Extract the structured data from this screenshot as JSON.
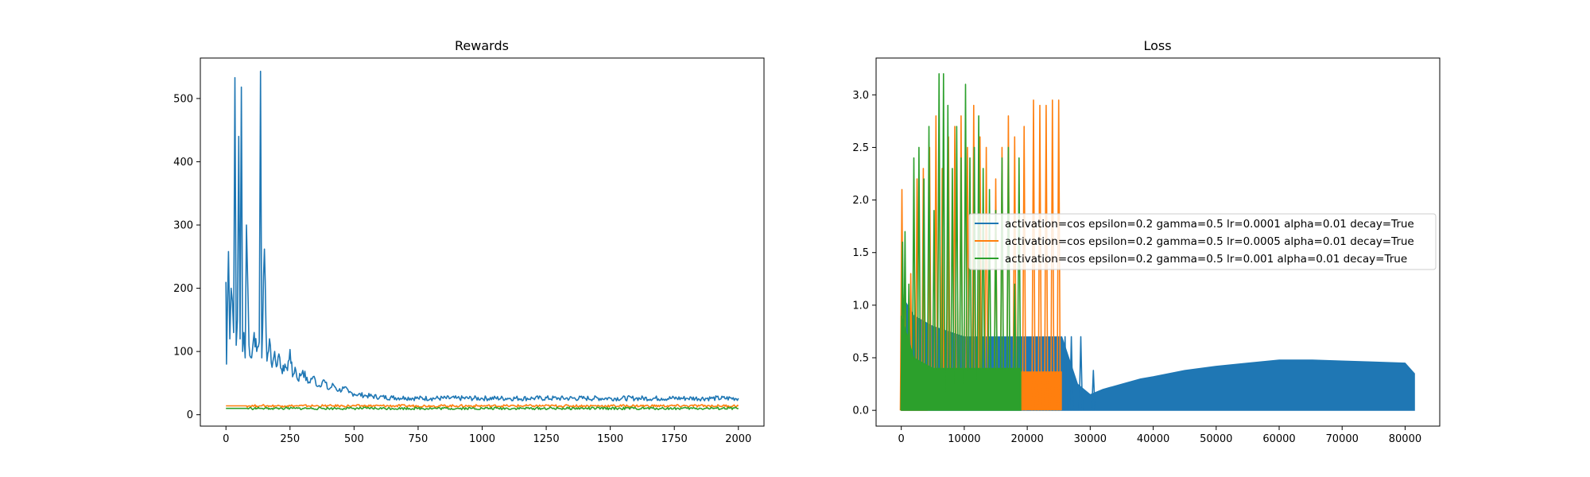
{
  "figure": {
    "background": "#ffffff"
  },
  "chart_data": [
    {
      "type": "line",
      "title": "Rewards",
      "xlabel": "",
      "ylabel": "",
      "xlim": [
        -100,
        2100
      ],
      "ylim": [
        -18,
        564
      ],
      "x_ticks": [
        0,
        250,
        500,
        750,
        1000,
        1250,
        1500,
        1750,
        2000
      ],
      "y_ticks": [
        0,
        100,
        200,
        300,
        400,
        500
      ],
      "grid": false,
      "legend": null,
      "x": [
        0,
        2,
        5,
        10,
        15,
        20,
        25,
        30,
        35,
        40,
        45,
        50,
        55,
        60,
        65,
        70,
        75,
        80,
        90,
        100,
        110,
        120,
        130,
        135,
        140,
        150,
        160,
        170,
        180,
        190,
        200,
        210,
        220,
        230,
        240,
        250,
        260,
        270,
        280,
        300,
        320,
        340,
        360,
        380,
        400,
        420,
        440,
        460,
        480,
        500,
        550,
        600,
        650,
        700,
        750,
        800,
        900,
        1000,
        1100,
        1200,
        1300,
        1400,
        1500,
        1600,
        1700,
        1800,
        1900,
        2000
      ],
      "series": [
        {
          "color": "#1f77b4",
          "values": [
            210,
            80,
            150,
            258,
            120,
            200,
            180,
            130,
            533,
            110,
            150,
            440,
            120,
            518,
            100,
            130,
            90,
            300,
            110,
            90,
            130,
            100,
            115,
            543,
            90,
            262,
            85,
            120,
            75,
            100,
            78,
            90,
            65,
            80,
            70,
            103,
            60,
            75,
            55,
            70,
            50,
            60,
            45,
            55,
            40,
            47,
            38,
            42,
            35,
            33,
            30,
            28,
            27,
            27,
            26,
            26,
            26,
            26,
            26,
            26,
            26,
            26,
            26,
            26,
            26,
            26,
            26,
            26
          ]
        },
        {
          "color": "#ff7f0e",
          "values": [
            14,
            14,
            14,
            14,
            14,
            14,
            14,
            14,
            14,
            14,
            14,
            14,
            14,
            14,
            14,
            14,
            14,
            14,
            14,
            14,
            14,
            14,
            14,
            14,
            14,
            14,
            14,
            14,
            14,
            14,
            14,
            14,
            14,
            14,
            14,
            14,
            14,
            14,
            14,
            14,
            14,
            14,
            14,
            14,
            14,
            14,
            14,
            14,
            14,
            14,
            14,
            14,
            14,
            14,
            14,
            14,
            14,
            14,
            14,
            14,
            14,
            14,
            14,
            14,
            14,
            14,
            14,
            14
          ]
        },
        {
          "color": "#2ca02c",
          "values": [
            10,
            10,
            10,
            10,
            10,
            10,
            10,
            10,
            10,
            10,
            10,
            10,
            10,
            10,
            10,
            10,
            10,
            10,
            10,
            10,
            10,
            10,
            10,
            10,
            10,
            10,
            10,
            10,
            10,
            10,
            10,
            10,
            10,
            10,
            10,
            10,
            10,
            10,
            10,
            10,
            10,
            10,
            10,
            10,
            10,
            10,
            10,
            10,
            10,
            10,
            10,
            10,
            10,
            10,
            10,
            10,
            10,
            10,
            10,
            10,
            10,
            10,
            10,
            10,
            10,
            10,
            10,
            10
          ]
        }
      ]
    },
    {
      "type": "line",
      "title": "Loss",
      "xlabel": "",
      "ylabel": "",
      "xlim": [
        -4000,
        85500
      ],
      "ylim": [
        -0.15,
        3.35
      ],
      "x_ticks": [
        0,
        10000,
        20000,
        30000,
        40000,
        50000,
        60000,
        70000,
        80000
      ],
      "y_ticks": [
        0.0,
        0.5,
        1.0,
        1.5,
        2.0,
        2.5,
        3.0
      ],
      "grid": false,
      "legend": "right",
      "series": [
        {
          "name": "activation=cos epsilon=0.2 gamma=0.5 lr=0.0001 alpha=0.01 decay=True",
          "color": "#1f77b4",
          "x_range": [
            0,
            81500
          ],
          "envelope_x": [
            0,
            2000,
            5000,
            10000,
            15000,
            20000,
            25000,
            25500,
            28000,
            30000,
            32000,
            35000,
            38000,
            40000,
            45000,
            50000,
            55000,
            60000,
            65000,
            70000,
            75000,
            80000,
            81500
          ],
          "envelope_y": [
            1.1,
            0.9,
            0.8,
            0.7,
            0.7,
            0.7,
            0.7,
            0.7,
            0.25,
            0.15,
            0.2,
            0.25,
            0.3,
            0.32,
            0.38,
            0.42,
            0.45,
            0.48,
            0.48,
            0.47,
            0.46,
            0.45,
            0.35
          ],
          "spikes": [
            [
              26000,
              0.7
            ],
            [
              27000,
              0.7
            ],
            [
              28500,
              0.7
            ],
            [
              30500,
              0.38
            ]
          ]
        },
        {
          "name": "activation=cos epsilon=0.2 gamma=0.5 lr=0.0005 alpha=0.01 decay=True",
          "color": "#ff7f0e",
          "x_range": [
            0,
            25500
          ],
          "decay_x": [
            0,
            1000,
            2000,
            3000,
            4000
          ],
          "decay_y": [
            0.22,
            0.18,
            0.1,
            0.04,
            0.0
          ],
          "block": [
            [
              13500,
              19000,
              0.37
            ],
            [
              19000,
              25500,
              0.37
            ]
          ],
          "spikes": [
            [
              100,
              2.1
            ],
            [
              500,
              1.1
            ],
            [
              1500,
              1.3
            ],
            [
              2500,
              2.2
            ],
            [
              3500,
              2.3
            ],
            [
              4500,
              2.5
            ],
            [
              5500,
              2.8
            ],
            [
              6500,
              2.3
            ],
            [
              7500,
              2.6
            ],
            [
              8500,
              2.7
            ],
            [
              9500,
              2.8
            ],
            [
              10500,
              2.5
            ],
            [
              11500,
              2.9
            ],
            [
              12500,
              2.6
            ],
            [
              13500,
              2.5
            ],
            [
              15000,
              2.2
            ],
            [
              16000,
              2.5
            ],
            [
              17000,
              2.8
            ],
            [
              18000,
              2.6
            ],
            [
              19500,
              2.7
            ],
            [
              21000,
              2.95
            ],
            [
              22000,
              2.9
            ],
            [
              23000,
              2.9
            ],
            [
              24000,
              2.95
            ],
            [
              25000,
              2.95
            ]
          ]
        },
        {
          "name": "activation=cos epsilon=0.2 gamma=0.5 lr=0.001 alpha=0.01 decay=True",
          "color": "#2ca02c",
          "x_range": [
            0,
            19000
          ],
          "envelope_x": [
            0,
            2000,
            5000,
            10000,
            15000,
            19000
          ],
          "envelope_y": [
            0.9,
            0.5,
            0.4,
            0.4,
            0.4,
            0.4
          ],
          "spikes": [
            [
              200,
              1.6
            ],
            [
              600,
              1.7
            ],
            [
              1200,
              1.2
            ],
            [
              2000,
              2.4
            ],
            [
              2800,
              2.5
            ],
            [
              3600,
              2.2
            ],
            [
              4400,
              2.7
            ],
            [
              5200,
              1.9
            ],
            [
              6000,
              3.2
            ],
            [
              6700,
              3.2
            ],
            [
              7400,
              2.9
            ],
            [
              8100,
              2.3
            ],
            [
              8800,
              2.7
            ],
            [
              9500,
              2.4
            ],
            [
              10200,
              3.1
            ],
            [
              10900,
              2.4
            ],
            [
              11600,
              2.5
            ],
            [
              12300,
              2.8
            ],
            [
              13000,
              2.3
            ],
            [
              14000,
              2.1
            ],
            [
              15000,
              1.9
            ],
            [
              16000,
              2.4
            ],
            [
              17000,
              2.5
            ],
            [
              18000,
              1.2
            ],
            [
              18700,
              2.4
            ]
          ]
        }
      ]
    }
  ]
}
